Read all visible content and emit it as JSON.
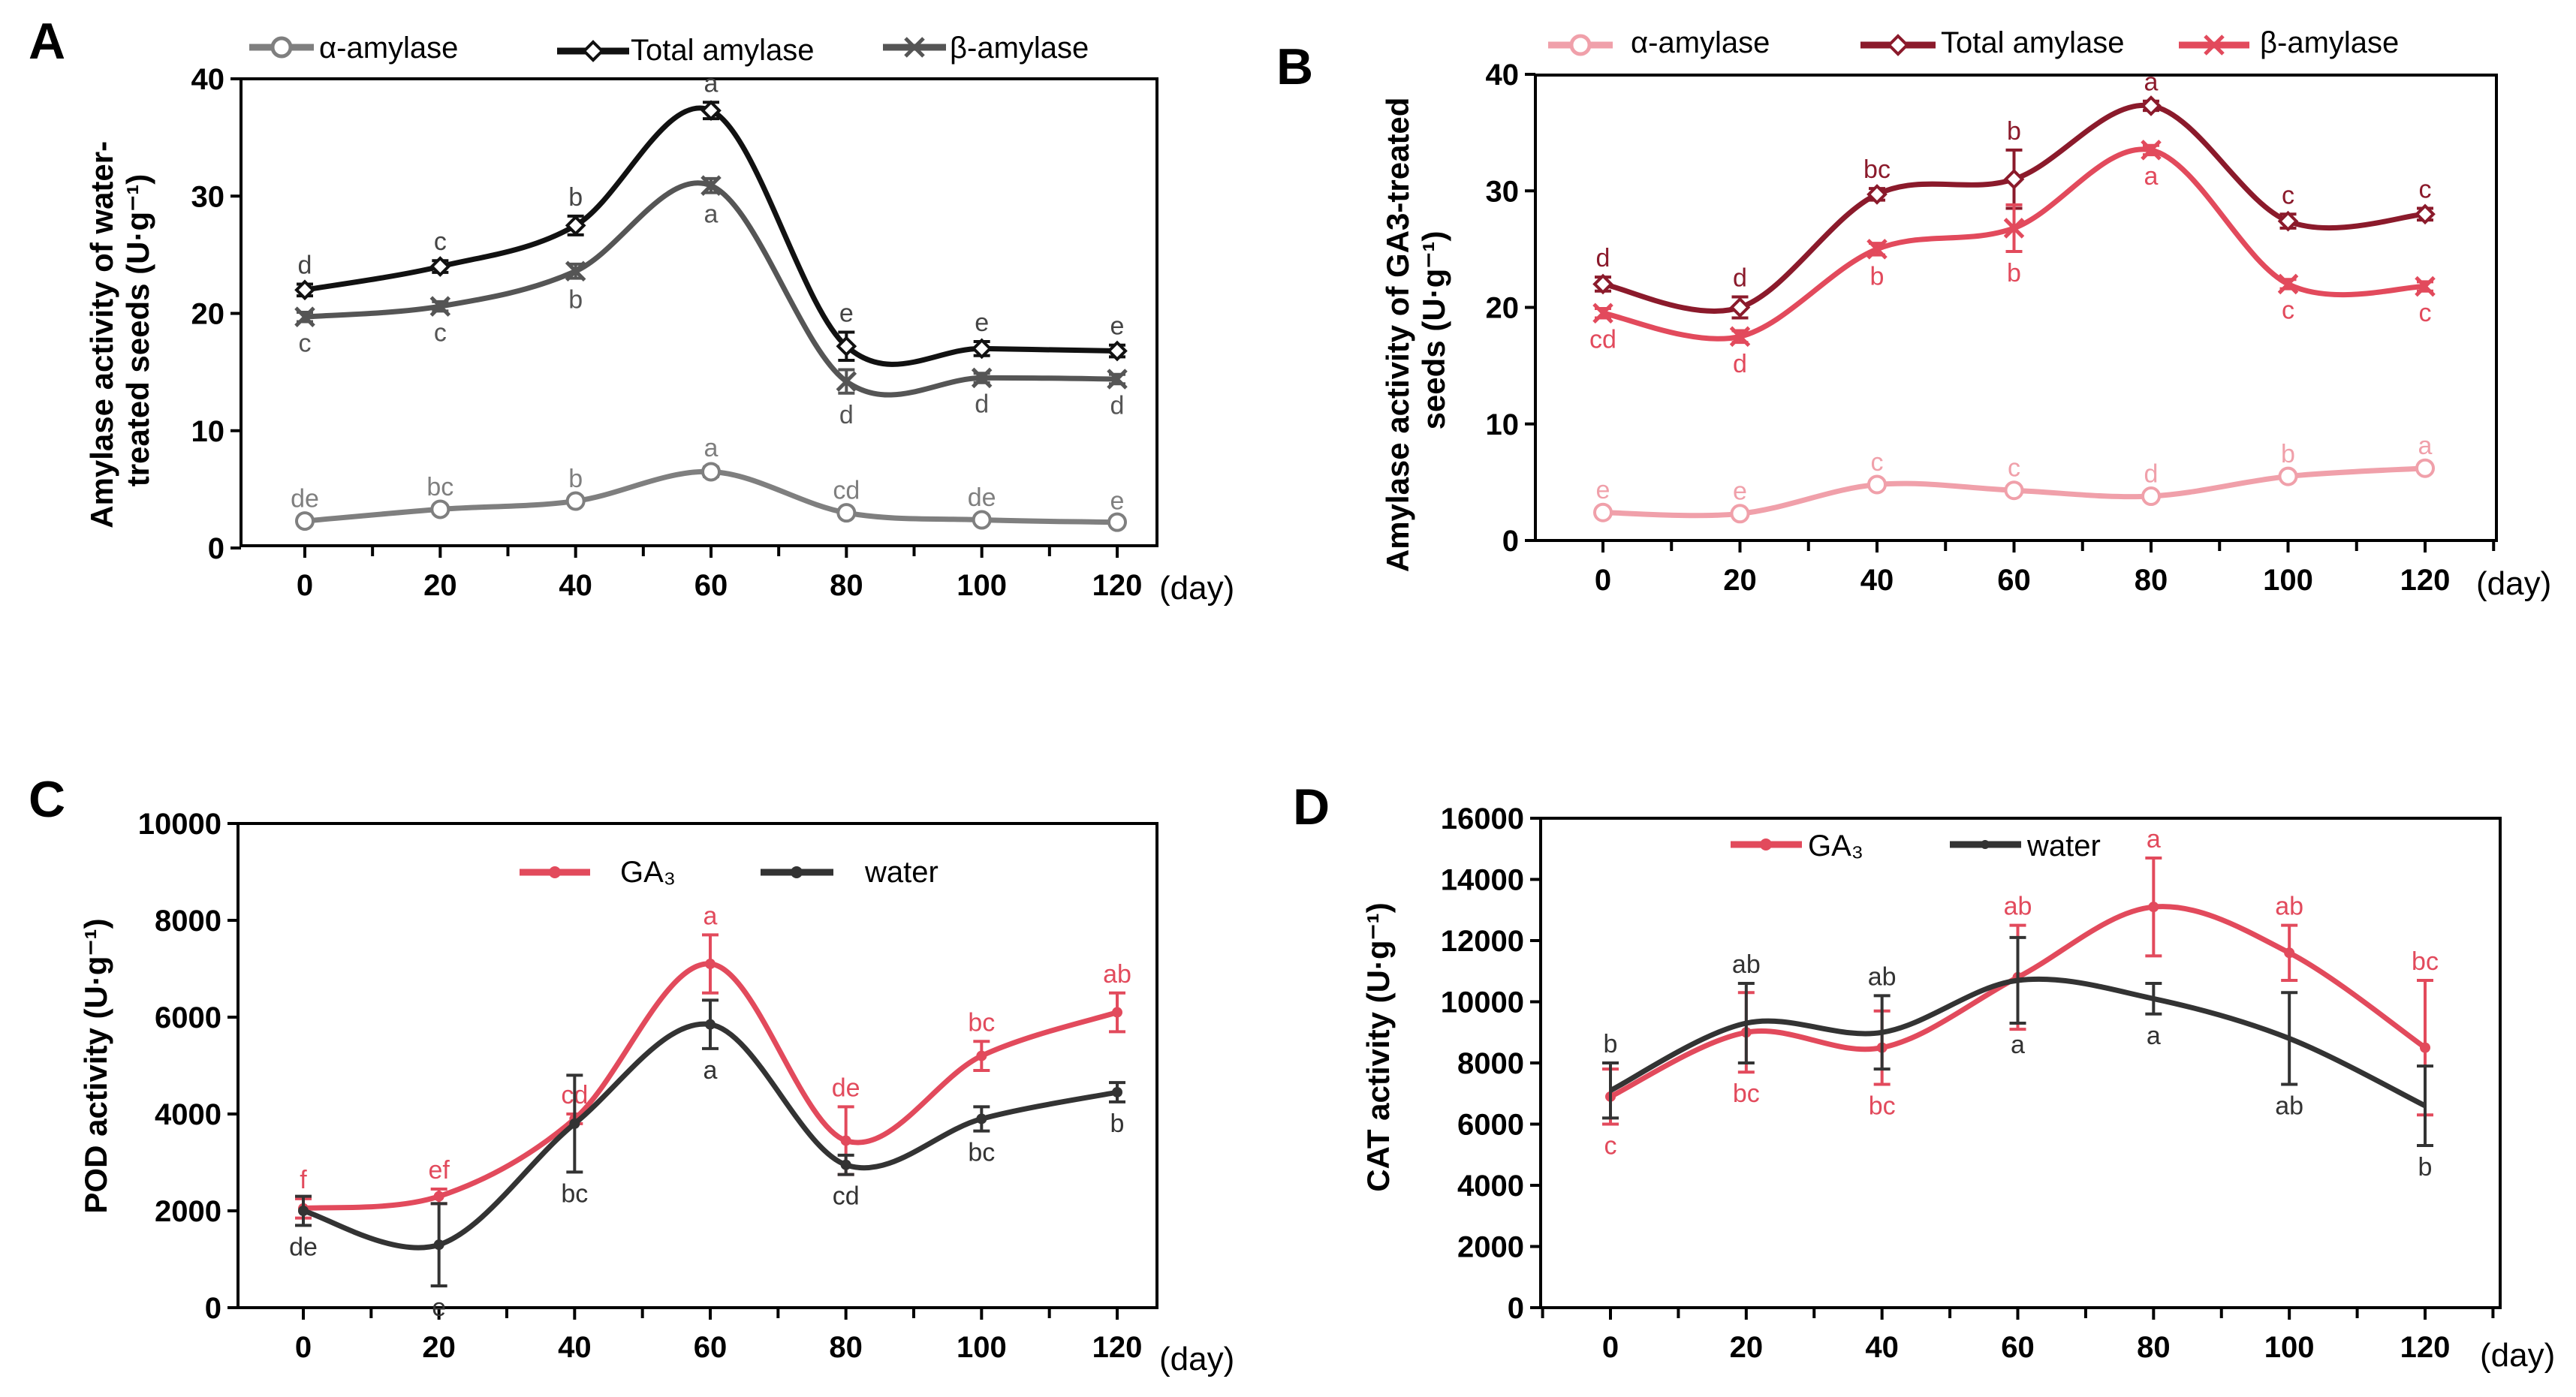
{
  "chart_data": [
    {
      "id": "A",
      "panel_label": "A",
      "type": "line",
      "ylabel": "Amylase activity of water-treated seeds (U·g⁻¹)",
      "ylabel_lines": [
        "Amylase activity of water-",
        "treated seeds (U·g⁻¹)"
      ],
      "x_unit": "(day)",
      "x": [
        0,
        20,
        40,
        60,
        80,
        100,
        120
      ],
      "x_tick_labels": [
        "0",
        "20",
        "40",
        "60",
        "80",
        "100",
        "120"
      ],
      "ylim": [
        0,
        40
      ],
      "y_ticks": [
        0,
        10,
        20,
        30,
        40
      ],
      "series": [
        {
          "name": "α-amylase",
          "color": "#7f7f7f",
          "marker": "circle",
          "values": [
            2.3,
            3.3,
            4.0,
            6.5,
            3.0,
            2.4,
            2.2
          ],
          "errors": [
            0.3,
            0.3,
            0.3,
            0.4,
            0.3,
            0.3,
            0.2
          ],
          "letters": [
            "de",
            "bc",
            "b",
            "a",
            "cd",
            "de",
            "e"
          ],
          "letter_pos": [
            "above",
            "above",
            "above",
            "above",
            "above",
            "above",
            "above"
          ]
        },
        {
          "name": "Total amylase",
          "color": "#111111",
          "marker": "diamond",
          "values": [
            22.0,
            24.0,
            27.5,
            37.3,
            17.2,
            17.0,
            16.8
          ],
          "errors": [
            0.5,
            0.5,
            0.8,
            0.7,
            1.2,
            0.6,
            0.5
          ],
          "letters": [
            "d",
            "c",
            "b",
            "a",
            "e",
            "e",
            "e"
          ],
          "letter_pos": [
            "above",
            "above",
            "above",
            "above",
            "above",
            "above",
            "above"
          ]
        },
        {
          "name": "β-amylase",
          "color": "#555555",
          "marker": "x",
          "values": [
            19.7,
            20.6,
            23.6,
            30.9,
            14.2,
            14.5,
            14.4
          ],
          "errors": [
            0.4,
            0.4,
            0.6,
            0.6,
            1.0,
            0.4,
            0.4
          ],
          "letters": [
            "c",
            "c",
            "b",
            "a",
            "d",
            "d",
            "d"
          ],
          "letter_pos": [
            "below",
            "below",
            "below",
            "below",
            "below",
            "below",
            "below"
          ]
        }
      ]
    },
    {
      "id": "B",
      "panel_label": "B",
      "type": "line",
      "ylabel": "Amylase activity of GA3-treated seeds (U·g⁻¹)",
      "ylabel_lines": [
        "Amylase activity of GA3-treated",
        "seeds (U·g⁻¹)"
      ],
      "x_unit": "(day)",
      "x": [
        0,
        20,
        40,
        60,
        80,
        100,
        120
      ],
      "x_tick_labels": [
        "0",
        "20",
        "40",
        "60",
        "80",
        "100",
        "120"
      ],
      "ylim": [
        0,
        40
      ],
      "y_ticks": [
        0,
        10,
        20,
        30,
        40
      ],
      "series": [
        {
          "name": "α-amylase",
          "color": "#f0a0aa",
          "marker": "circle",
          "values": [
            2.4,
            2.3,
            4.8,
            4.3,
            3.8,
            5.5,
            6.2
          ],
          "errors": [
            0.3,
            0.3,
            0.3,
            0.3,
            0.3,
            0.3,
            0.3
          ],
          "letters": [
            "e",
            "e",
            "c",
            "c",
            "d",
            "b",
            "a"
          ],
          "letter_pos": [
            "above",
            "above",
            "above",
            "above",
            "above",
            "above",
            "above"
          ]
        },
        {
          "name": "Total amylase",
          "color": "#8b1a2b",
          "marker": "diamond",
          "values": [
            22.0,
            20.0,
            29.7,
            31.0,
            37.3,
            27.4,
            28.0
          ],
          "errors": [
            0.6,
            0.9,
            0.5,
            2.5,
            0.4,
            0.6,
            0.5
          ],
          "letters": [
            "d",
            "d",
            "bc",
            "b",
            "a",
            "c",
            "c"
          ],
          "letter_pos": [
            "above",
            "above",
            "above",
            "above",
            "above",
            "above",
            "above"
          ]
        },
        {
          "name": "β-amylase",
          "color": "#e24a5c",
          "marker": "x",
          "values": [
            19.5,
            17.5,
            25.0,
            26.8,
            33.5,
            22.0,
            21.8
          ],
          "errors": [
            0.4,
            0.5,
            0.5,
            2.0,
            0.4,
            0.4,
            0.4
          ],
          "letters": [
            "cd",
            "d",
            "b",
            "b",
            "a",
            "c",
            "c"
          ],
          "letter_pos": [
            "below",
            "below",
            "below",
            "below",
            "below",
            "below",
            "below"
          ]
        }
      ]
    },
    {
      "id": "C",
      "panel_label": "C",
      "type": "line",
      "ylabel": "POD activity (U·g⁻¹)",
      "ylabel_lines": [
        "POD activity (U·g⁻¹)"
      ],
      "x_unit": "(day)",
      "x": [
        0,
        20,
        40,
        60,
        80,
        100,
        120
      ],
      "x_tick_labels": [
        "0",
        "20",
        "40",
        "60",
        "80",
        "100",
        "120"
      ],
      "ylim": [
        0,
        10000
      ],
      "y_ticks": [
        0,
        2000,
        4000,
        6000,
        8000,
        10000
      ],
      "series": [
        {
          "name": "GA₃",
          "color": "#e24a5c",
          "marker": "dot",
          "values": [
            2050,
            2300,
            3900,
            7100,
            3450,
            5200,
            6100
          ],
          "errors": [
            200,
            150,
            100,
            600,
            700,
            300,
            400
          ],
          "letters": [
            "f",
            "ef",
            "cd",
            "a",
            "de",
            "bc",
            "ab"
          ],
          "letter_pos": [
            "above",
            "above",
            "above",
            "above",
            "above",
            "above",
            "above"
          ]
        },
        {
          "name": "water",
          "color": "#333333",
          "marker": "dot",
          "values": [
            2000,
            1300,
            3800,
            5850,
            2950,
            3900,
            4450
          ],
          "errors": [
            300,
            850,
            1000,
            500,
            200,
            250,
            200
          ],
          "letters": [
            "de",
            "e",
            "bc",
            "a",
            "cd",
            "bc",
            "b"
          ],
          "letter_pos": [
            "below",
            "below",
            "below",
            "below",
            "below",
            "below",
            "below"
          ]
        }
      ]
    },
    {
      "id": "D",
      "panel_label": "D",
      "type": "line",
      "ylabel": "CAT activity (U·g⁻¹)",
      "ylabel_lines": [
        "CAT activity (U·g⁻¹)"
      ],
      "x_unit": "(day)",
      "x": [
        0,
        20,
        40,
        60,
        80,
        100,
        120
      ],
      "x_tick_labels": [
        "0",
        "20",
        "40",
        "60",
        "80",
        "100",
        "120"
      ],
      "ylim": [
        0,
        16000
      ],
      "y_ticks": [
        0,
        2000,
        4000,
        6000,
        8000,
        10000,
        12000,
        14000,
        16000
      ],
      "series": [
        {
          "name": "GA₃",
          "color": "#e24a5c",
          "marker": "dot",
          "values": [
            6900,
            9000,
            8500,
            10800,
            13100,
            11600,
            8500
          ],
          "errors": [
            900,
            1300,
            1200,
            1700,
            1600,
            900,
            2200
          ],
          "letters": [
            "c",
            "bc",
            "bc",
            "ab",
            "a",
            "ab",
            "bc"
          ],
          "letter_pos": [
            "below",
            "below",
            "below",
            "above",
            "above",
            "above",
            "above"
          ]
        },
        {
          "name": "water",
          "color": "#333333",
          "marker": "none",
          "values": [
            7100,
            9300,
            9000,
            10700,
            10100,
            8800,
            6600
          ],
          "errors": [
            900,
            1300,
            1200,
            1400,
            500,
            1500,
            1300
          ],
          "letters": [
            "b",
            "ab",
            "ab",
            "a",
            "a",
            "ab",
            "b"
          ],
          "letter_pos": [
            "above",
            "above",
            "above",
            "below",
            "below",
            "below",
            "below"
          ]
        }
      ]
    }
  ]
}
